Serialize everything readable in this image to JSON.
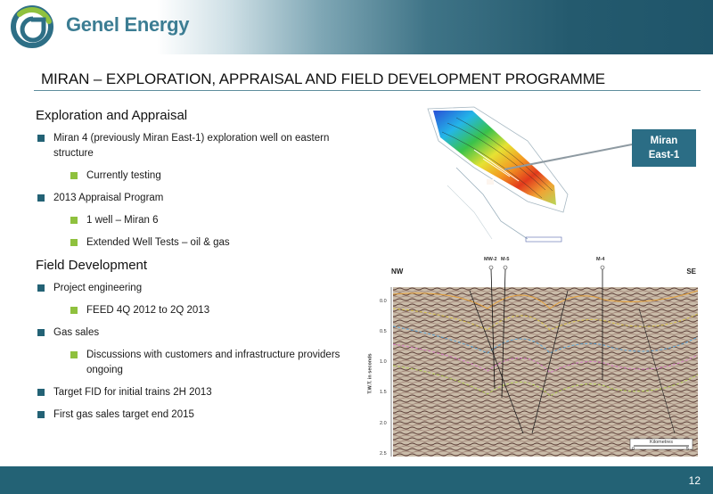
{
  "brand": {
    "name": "Genel Energy"
  },
  "title": "MIRAN – EXPLORATION, APPRAISAL AND FIELD DEVELOPMENT PROGRAMME",
  "sections": {
    "exploration": {
      "heading": "Exploration and Appraisal",
      "b1": "Miran 4 (previously Miran East-1) exploration well on eastern structure",
      "b1_sub": "Currently testing",
      "b2": "2013 Appraisal Program",
      "b2_sub1": "1 well – Miran 6",
      "b2_sub2": "Extended Well Tests – oil & gas"
    },
    "development": {
      "heading": "Field Development",
      "b1": "Project engineering",
      "b1_sub": "FEED 4Q 2012 to 2Q 2013",
      "b2": "Gas sales",
      "b2_sub": "Discussions with customers and infrastructure providers ongoing",
      "b3": "Target FID for initial trains 2H 2013",
      "b4": "First gas sales target end 2015"
    }
  },
  "callout": {
    "line1": "Miran",
    "line2": "East-1"
  },
  "seismic": {
    "left_label": "NW",
    "right_label": "SE",
    "axis_label": "T.W.T. in seconds",
    "ticks": [
      "0.0",
      "0.5",
      "1.0",
      "1.5",
      "2.0",
      "2.5"
    ],
    "wells": [
      "MW-2",
      "M-5",
      "M-4"
    ],
    "scale_label": "Kilometres",
    "scale_start": "0",
    "scale_end": "5"
  },
  "page_number": "12",
  "colors": {
    "brand_teal": "#236275",
    "bullet_green": "#8fc13e",
    "callout": "#2b6d85"
  }
}
